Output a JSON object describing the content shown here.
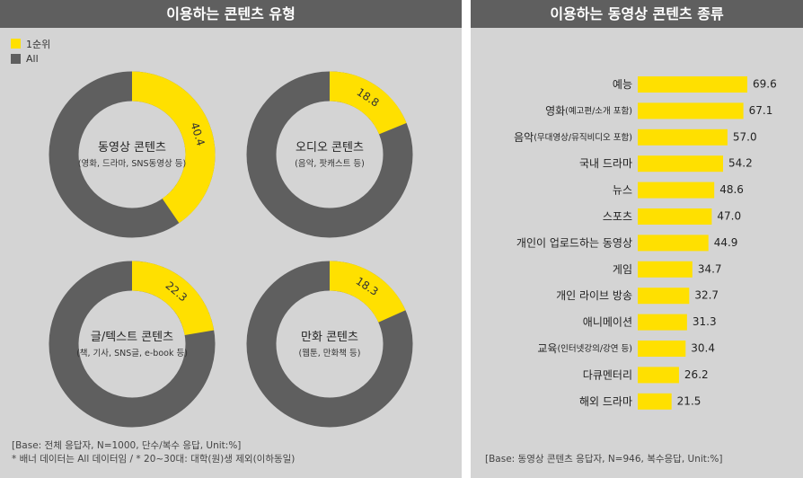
{
  "chart_data": [
    {
      "type": "pie",
      "title": "이용하는 콘텐츠 유형",
      "legend": {
        "placement": "top-left",
        "entries": [
          {
            "label": "1순위",
            "color": "#ffe000"
          },
          {
            "label": "All",
            "color": "#5f5f5f"
          }
        ]
      },
      "donuts": [
        {
          "name": "동영상 콘텐츠",
          "sub": "(영화, 드라마, SNS동영상 등)",
          "first_rank": 40.4,
          "label": "40.4"
        },
        {
          "name": "오디오 콘텐츠",
          "sub": "(음악, 팟캐스트 등)",
          "first_rank": 18.8,
          "label": "18.8"
        },
        {
          "name": "글/텍스트 콘텐츠",
          "sub": "(책, 기사, SNS글, e-book 등)",
          "first_rank": 22.3,
          "label": "22.3"
        },
        {
          "name": "만화 콘텐츠",
          "sub": "(웹툰, 만화책 등)",
          "first_rank": 18.3,
          "label": "18.3"
        }
      ],
      "footnotes": [
        "[Base: 전체 응답자, N=1000, 단수/복수 응답, Unit:%]",
        "* 배너 데이터는 All 데이터임 / * 20~30대: 대학(원)생 제외(이하동일)"
      ]
    },
    {
      "type": "bar",
      "orientation": "horizontal",
      "title": "이용하는 동영상 콘텐츠 종류",
      "categories": [
        {
          "main": "예능",
          "sub": ""
        },
        {
          "main": "영화",
          "sub": "(예고편/소개 포함)"
        },
        {
          "main": "음악",
          "sub": "(무대영상/뮤직비디오 포함)"
        },
        {
          "main": "국내 드라마",
          "sub": ""
        },
        {
          "main": "뉴스",
          "sub": ""
        },
        {
          "main": "스포츠",
          "sub": ""
        },
        {
          "main": "개인이 업로드하는 동영상",
          "sub": ""
        },
        {
          "main": "게임",
          "sub": ""
        },
        {
          "main": "개인 라이브 방송",
          "sub": ""
        },
        {
          "main": "애니메이션",
          "sub": ""
        },
        {
          "main": "교육",
          "sub": "(인터넷강의/강연 등)"
        },
        {
          "main": "다큐멘터리",
          "sub": ""
        },
        {
          "main": "해외 드라마",
          "sub": ""
        }
      ],
      "values": [
        69.6,
        67.1,
        57.0,
        54.2,
        48.6,
        47.0,
        44.9,
        34.7,
        32.7,
        31.3,
        30.4,
        26.2,
        21.5
      ],
      "value_labels": [
        "69.6",
        "67.1",
        "57.0",
        "54.2",
        "48.6",
        "47.0",
        "44.9",
        "34.7",
        "32.7",
        "31.3",
        "30.4",
        "26.2",
        "21.5"
      ],
      "bar_color": "#ffe000",
      "footnote": "[Base: 동영상 콘텐츠 응답자, N=946, 복수응답, Unit:%]"
    }
  ],
  "colors": {
    "accent": "#ffe000",
    "remainder": "#5f5f5f",
    "header": "#5f5f5f",
    "panel": "#d4d4d4"
  }
}
